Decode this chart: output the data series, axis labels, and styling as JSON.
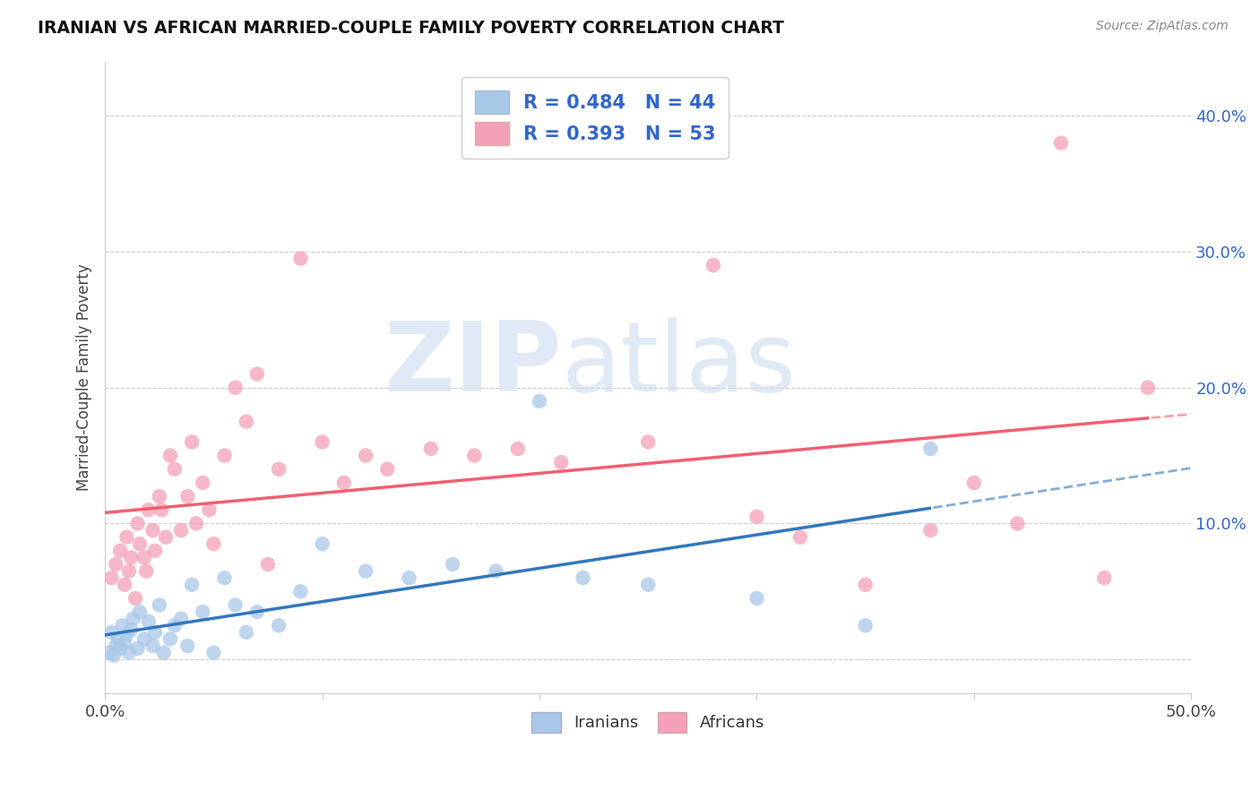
{
  "title": "IRANIAN VS AFRICAN MARRIED-COUPLE FAMILY POVERTY CORRELATION CHART",
  "source": "Source: ZipAtlas.com",
  "ylabel": "Married-Couple Family Poverty",
  "yticks": [
    0.0,
    0.1,
    0.2,
    0.3,
    0.4
  ],
  "ytick_labels": [
    "",
    "10.0%",
    "20.0%",
    "30.0%",
    "40.0%"
  ],
  "xlim": [
    0.0,
    0.5
  ],
  "ylim": [
    -0.025,
    0.44
  ],
  "iranian_R": 0.484,
  "iranian_N": 44,
  "african_R": 0.393,
  "african_N": 53,
  "iranian_color": "#a8c8e8",
  "african_color": "#f4a0b8",
  "iranian_line_color": "#3377bb",
  "african_line_color": "#f06070",
  "legend_text_color": "#3366cc",
  "iranian_scatter_x": [
    0.002,
    0.003,
    0.004,
    0.005,
    0.006,
    0.007,
    0.008,
    0.009,
    0.01,
    0.011,
    0.012,
    0.013,
    0.015,
    0.016,
    0.018,
    0.02,
    0.022,
    0.023,
    0.025,
    0.027,
    0.03,
    0.032,
    0.035,
    0.038,
    0.04,
    0.045,
    0.05,
    0.055,
    0.06,
    0.065,
    0.07,
    0.08,
    0.09,
    0.1,
    0.12,
    0.14,
    0.16,
    0.18,
    0.2,
    0.22,
    0.25,
    0.3,
    0.35,
    0.38
  ],
  "iranian_scatter_y": [
    0.005,
    0.02,
    0.003,
    0.01,
    0.015,
    0.008,
    0.025,
    0.012,
    0.018,
    0.005,
    0.022,
    0.03,
    0.008,
    0.035,
    0.015,
    0.028,
    0.01,
    0.02,
    0.04,
    0.005,
    0.015,
    0.025,
    0.03,
    0.01,
    0.055,
    0.035,
    0.005,
    0.06,
    0.04,
    0.02,
    0.035,
    0.025,
    0.05,
    0.085,
    0.065,
    0.06,
    0.07,
    0.065,
    0.19,
    0.06,
    0.055,
    0.045,
    0.025,
    0.155
  ],
  "african_scatter_x": [
    0.003,
    0.005,
    0.007,
    0.009,
    0.01,
    0.011,
    0.012,
    0.014,
    0.015,
    0.016,
    0.018,
    0.019,
    0.02,
    0.022,
    0.023,
    0.025,
    0.026,
    0.028,
    0.03,
    0.032,
    0.035,
    0.038,
    0.04,
    0.042,
    0.045,
    0.048,
    0.05,
    0.055,
    0.06,
    0.065,
    0.07,
    0.075,
    0.08,
    0.09,
    0.1,
    0.11,
    0.12,
    0.13,
    0.15,
    0.17,
    0.19,
    0.21,
    0.25,
    0.28,
    0.3,
    0.32,
    0.35,
    0.38,
    0.4,
    0.42,
    0.44,
    0.46,
    0.48
  ],
  "african_scatter_y": [
    0.06,
    0.07,
    0.08,
    0.055,
    0.09,
    0.065,
    0.075,
    0.045,
    0.1,
    0.085,
    0.075,
    0.065,
    0.11,
    0.095,
    0.08,
    0.12,
    0.11,
    0.09,
    0.15,
    0.14,
    0.095,
    0.12,
    0.16,
    0.1,
    0.13,
    0.11,
    0.085,
    0.15,
    0.2,
    0.175,
    0.21,
    0.07,
    0.14,
    0.295,
    0.16,
    0.13,
    0.15,
    0.14,
    0.155,
    0.15,
    0.155,
    0.145,
    0.16,
    0.29,
    0.105,
    0.09,
    0.055,
    0.095,
    0.13,
    0.1,
    0.38,
    0.06,
    0.2
  ]
}
